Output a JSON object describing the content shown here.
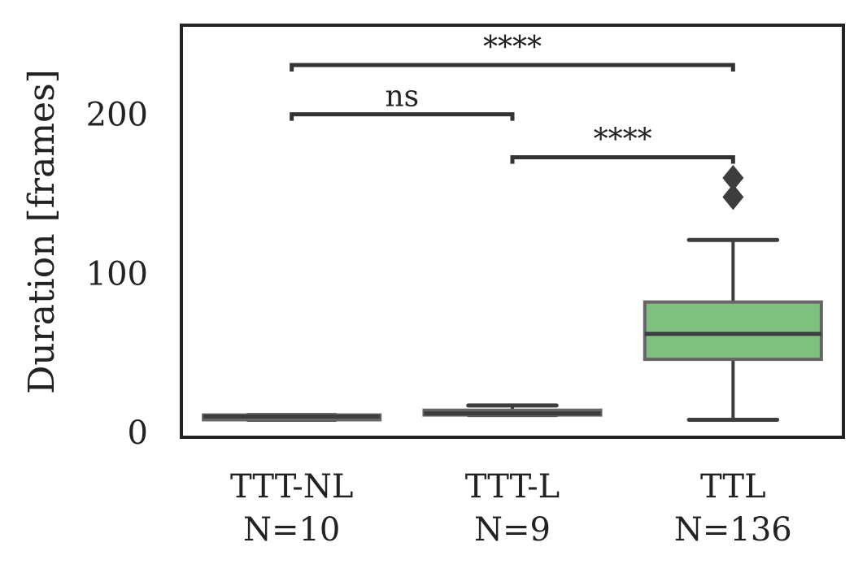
{
  "chart_data": {
    "type": "box",
    "ylabel": "Duration [frames]",
    "ylim": [
      -3,
      256
    ],
    "yticks": [
      0,
      100,
      200
    ],
    "categories": [
      "TTT-NL",
      "TTT-L",
      "TTL"
    ],
    "counts": [
      "N=10",
      "N=9",
      "N=136"
    ],
    "boxes": [
      {
        "whisker_low": 8,
        "q1": 8,
        "median": 10,
        "q3": 11,
        "whisker_high": 11,
        "outliers": [],
        "color": "#5a5a5a"
      },
      {
        "whisker_low": 11,
        "q1": 11,
        "median": 12,
        "q3": 14,
        "whisker_high": 17,
        "outliers": [],
        "color": "#5a5a5a"
      },
      {
        "whisker_low": 8,
        "q1": 46,
        "median": 62,
        "q3": 82,
        "whisker_high": 121,
        "outliers": [
          148,
          160
        ],
        "color": "#7fbf7f"
      }
    ],
    "significance": [
      {
        "from": 0,
        "to": 2,
        "y": 231,
        "label": "****"
      },
      {
        "from": 0,
        "to": 1,
        "y": 200,
        "label": "ns"
      },
      {
        "from": 1,
        "to": 2,
        "y": 173,
        "label": "****"
      }
    ]
  }
}
